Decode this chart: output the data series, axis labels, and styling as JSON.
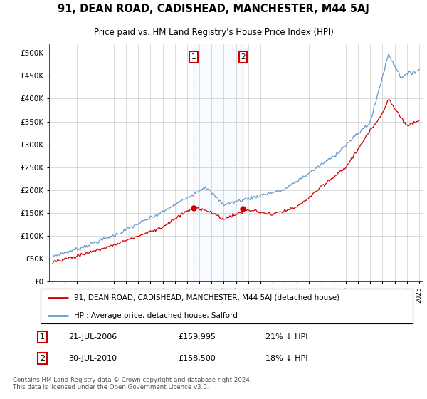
{
  "title": "91, DEAN ROAD, CADISHEAD, MANCHESTER, M44 5AJ",
  "subtitle": "Price paid vs. HM Land Registry's House Price Index (HPI)",
  "legend_line1": "91, DEAN ROAD, CADISHEAD, MANCHESTER, M44 5AJ (detached house)",
  "legend_line2": "HPI: Average price, detached house, Salford",
  "annotation1_date": "21-JUL-2006",
  "annotation1_price": "£159,995",
  "annotation1_hpi": "21% ↓ HPI",
  "annotation2_date": "30-JUL-2010",
  "annotation2_price": "£158,500",
  "annotation2_hpi": "18% ↓ HPI",
  "footer": "Contains HM Land Registry data © Crown copyright and database right 2024.\nThis data is licensed under the Open Government Licence v3.0.",
  "red_color": "#cc0000",
  "blue_color": "#6699cc",
  "shade_color": "#ddeeff",
  "grid_color": "#cccccc",
  "ylim": [
    0,
    520000
  ],
  "yticks": [
    0,
    50000,
    100000,
    150000,
    200000,
    250000,
    300000,
    350000,
    400000,
    450000,
    500000
  ],
  "ytick_labels": [
    "£0",
    "£50K",
    "£100K",
    "£150K",
    "£200K",
    "£250K",
    "£300K",
    "£350K",
    "£400K",
    "£450K",
    "£500K"
  ],
  "sale1_year": 2006.55,
  "sale1_val": 159995,
  "sale2_year": 2010.58,
  "sale2_val": 158500,
  "shade_x1": 2006.55,
  "shade_x2": 2010.58,
  "xlim_left": 1994.7,
  "xlim_right": 2025.3
}
